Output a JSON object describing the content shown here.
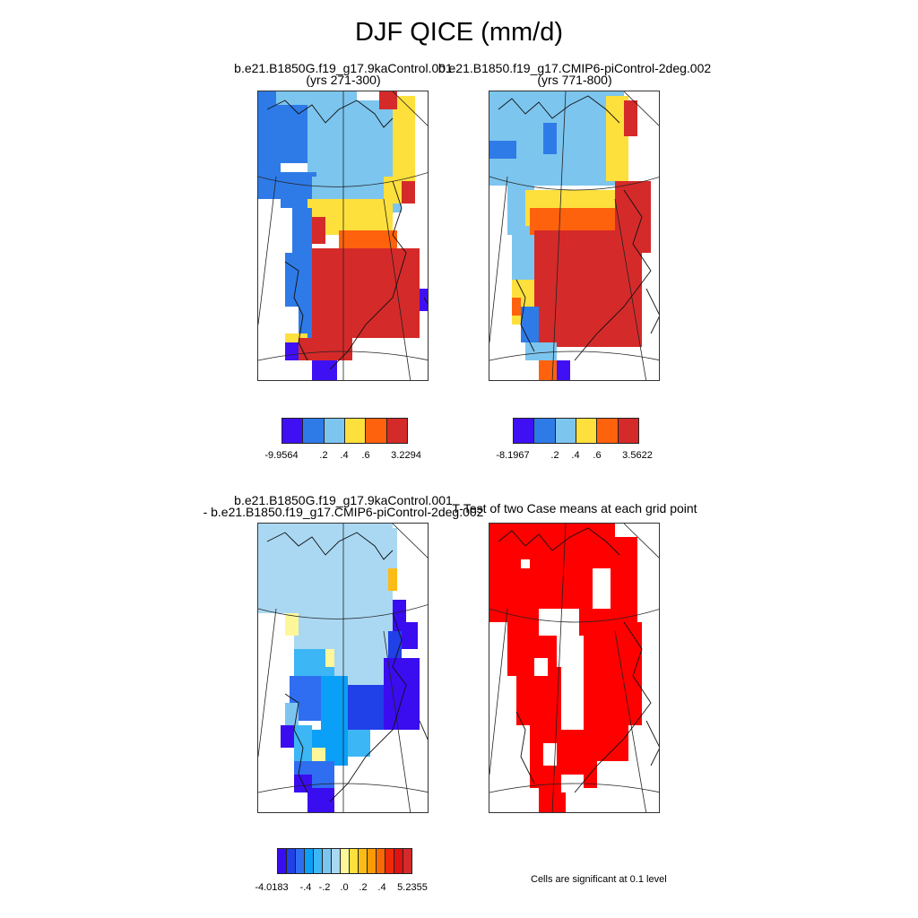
{
  "title": "DJF QICE (mm/d)",
  "panels": [
    {
      "title_line1": "b.e21.B1850G.f19_g17.9kaControl.001",
      "title_line2": "(yrs 271-300)"
    },
    {
      "title_line1": "b.e21.B1850.f19_g17.CMIP6-piControl-2deg.002",
      "title_line2": "(yrs 771-800)"
    },
    {
      "title_line1": "b.e21.B1850G.f19_g17.9kaControl.001",
      "title_line2": "- b.e21.B1850.f19_g17.CMIP6-piControl-2deg.002"
    },
    {
      "title_line1": "T-Test of two Case means at each grid point",
      "title_line2": ""
    }
  ],
  "colorbars": [
    {
      "ticks": [
        "-9.9564",
        ".2",
        ".4",
        ".6",
        "3.2294"
      ],
      "colors": [
        "#4010f5",
        "#2e7be8",
        "#7cc5ee",
        "#fde03c",
        "#fe620d",
        "#d52a2a"
      ]
    },
    {
      "ticks": [
        "-8.1967",
        ".2",
        ".4",
        ".6",
        "3.5622"
      ],
      "colors": [
        "#4010f5",
        "#2e7be8",
        "#7cc5ee",
        "#fde03c",
        "#fe620d",
        "#d52a2a"
      ]
    },
    {
      "ticks": [
        "-4.0183",
        "-.4",
        "-.2",
        ".0",
        ".2",
        ".4",
        "5.2355"
      ],
      "colors": [
        "#3a0cf0",
        "#2040e8",
        "#2f6ef0",
        "#0aa0f8",
        "#3cb6f5",
        "#7cc5ee",
        "#aad8f2",
        "#fef79a",
        "#fde03c",
        "#fcbc16",
        "#fb9a04",
        "#f86a06",
        "#ee2a0a",
        "#e01212",
        "#d52a2a"
      ]
    }
  ],
  "note": "Cells are significant at 0.1 level"
}
